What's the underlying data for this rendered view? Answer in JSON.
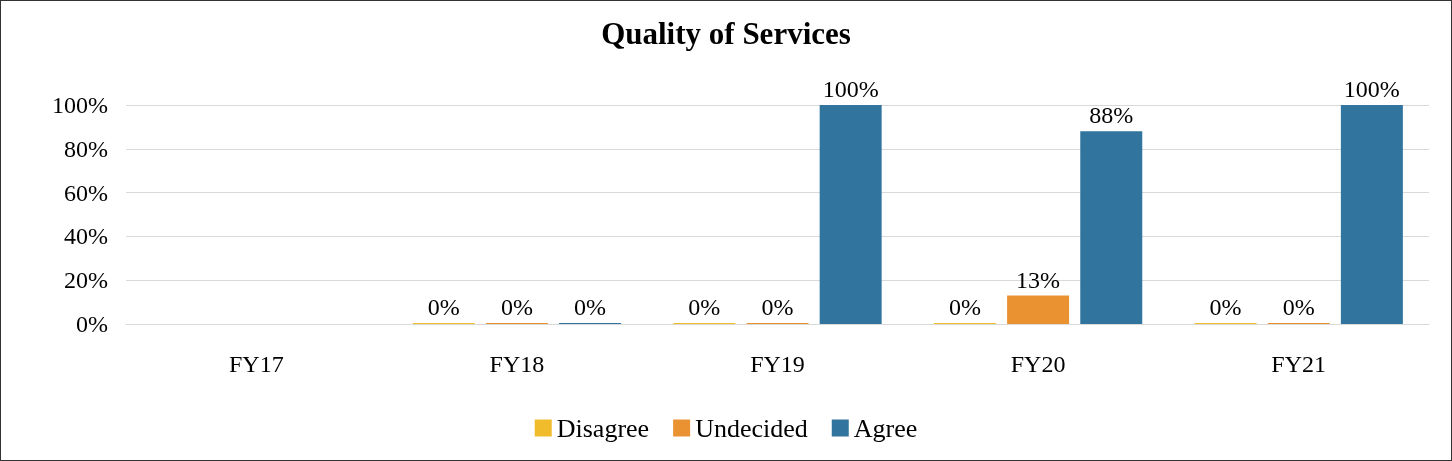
{
  "chart_data": {
    "type": "bar",
    "title": "Quality of Services",
    "categories": [
      "FY17",
      "FY18",
      "FY19",
      "FY20",
      "FY21"
    ],
    "series": [
      {
        "name": "Disagree",
        "color": "#f0bc2c",
        "values": [
          null,
          0,
          0,
          0,
          0
        ],
        "value_labels": [
          null,
          "0%",
          "0%",
          "0%",
          "0%"
        ]
      },
      {
        "name": "Undecided",
        "color": "#ea9232",
        "values": [
          null,
          0,
          0,
          13,
          0
        ],
        "value_labels": [
          null,
          "0%",
          "0%",
          "13%",
          "0%"
        ]
      },
      {
        "name": "Agree",
        "color": "#31749e",
        "values": [
          null,
          0,
          100,
          88,
          100
        ],
        "value_labels": [
          null,
          "0%",
          "100%",
          "88%",
          "100%"
        ]
      }
    ],
    "ylim": [
      0,
      100
    ],
    "yticks": [
      {
        "value": 0,
        "label": "0%"
      },
      {
        "value": 20,
        "label": "20%"
      },
      {
        "value": 40,
        "label": "40%"
      },
      {
        "value": 60,
        "label": "60%"
      },
      {
        "value": 80,
        "label": "80%"
      },
      {
        "value": 100,
        "label": "100%"
      }
    ],
    "grid": "y",
    "legend": "bottom"
  }
}
